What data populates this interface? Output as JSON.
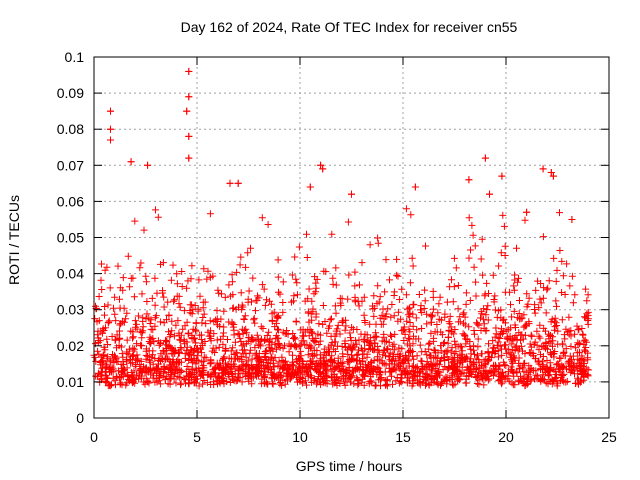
{
  "chart_data": {
    "type": "scatter",
    "title": "Day 162 of 2024, Rate Of TEC Index for receiver cn55",
    "xlabel": "GPS time / hours",
    "ylabel": "ROTI / TECUs",
    "xlim": [
      0,
      25
    ],
    "ylim": [
      0,
      0.1
    ],
    "xticks": [
      "0",
      "5",
      "10",
      "15",
      "20",
      "25"
    ],
    "yticks": [
      "0",
      "0.01",
      "0.02",
      "0.03",
      "0.04",
      "0.05",
      "0.06",
      "0.07",
      "0.08",
      "0.09",
      "0.1"
    ],
    "grid": true,
    "marker": "plus",
    "color": "#ff0000",
    "series": [
      {
        "name": "ROTI",
        "x_range": [
          0,
          24
        ],
        "typical_range": [
          0.005,
          0.03
        ],
        "notable_points": [
          {
            "x": 0.8,
            "y": 0.085
          },
          {
            "x": 0.8,
            "y": 0.08
          },
          {
            "x": 0.8,
            "y": 0.077
          },
          {
            "x": 1.8,
            "y": 0.071
          },
          {
            "x": 2.6,
            "y": 0.07
          },
          {
            "x": 4.6,
            "y": 0.096
          },
          {
            "x": 4.6,
            "y": 0.089
          },
          {
            "x": 4.5,
            "y": 0.085
          },
          {
            "x": 4.6,
            "y": 0.078
          },
          {
            "x": 4.6,
            "y": 0.072
          },
          {
            "x": 6.6,
            "y": 0.065
          },
          {
            "x": 7.0,
            "y": 0.065
          },
          {
            "x": 10.5,
            "y": 0.064
          },
          {
            "x": 11.0,
            "y": 0.07
          },
          {
            "x": 11.1,
            "y": 0.069
          },
          {
            "x": 12.5,
            "y": 0.062
          },
          {
            "x": 15.6,
            "y": 0.064
          },
          {
            "x": 18.2,
            "y": 0.066
          },
          {
            "x": 19.0,
            "y": 0.072
          },
          {
            "x": 19.2,
            "y": 0.062
          },
          {
            "x": 19.8,
            "y": 0.067
          },
          {
            "x": 21.8,
            "y": 0.069
          },
          {
            "x": 22.2,
            "y": 0.068
          },
          {
            "x": 22.3,
            "y": 0.067
          },
          {
            "x": 21.0,
            "y": 0.057
          },
          {
            "x": 23.2,
            "y": 0.055
          }
        ]
      }
    ]
  }
}
